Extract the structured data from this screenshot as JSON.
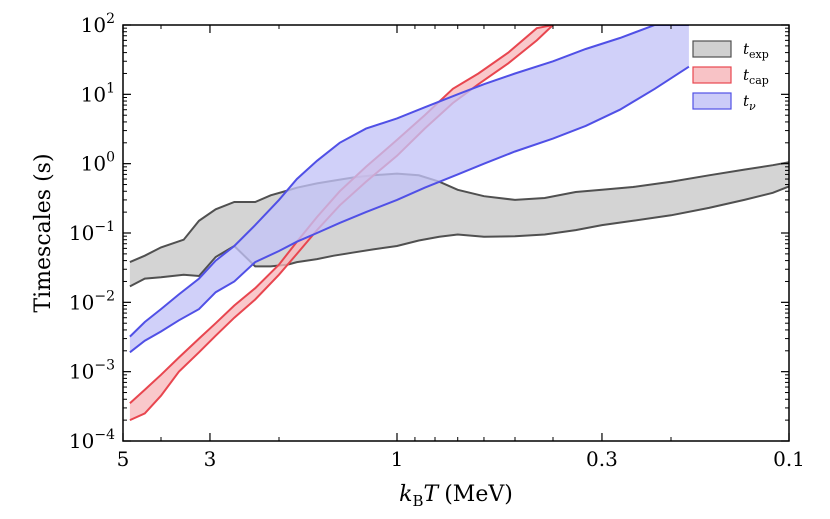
{
  "chart_data": {
    "type": "area",
    "title": "",
    "xlabel": "k_B T (MeV)",
    "xlabel_parts": {
      "k": "k",
      "sub": "B",
      "T": "T",
      "unit": "(MeV)"
    },
    "ylabel": "Timescales (s)",
    "xscale": "log",
    "yscale": "log",
    "xlim": [
      5,
      0.1
    ],
    "ylim": [
      0.0001,
      100
    ],
    "xticks": [
      {
        "value": 5,
        "label": "5"
      },
      {
        "value": 3,
        "label": "3"
      },
      {
        "value": 1,
        "label": "1"
      },
      {
        "value": 0.3,
        "label": "0.3"
      },
      {
        "value": 0.1,
        "label": "0.1"
      }
    ],
    "yticks": [
      {
        "exp": -4,
        "base": "10",
        "sup": "−4"
      },
      {
        "exp": -3,
        "base": "10",
        "sup": "−3"
      },
      {
        "exp": -2,
        "base": "10",
        "sup": "−2"
      },
      {
        "exp": -1,
        "base": "10",
        "sup": "−1"
      },
      {
        "exp": 0,
        "base": "10",
        "sup": "0"
      },
      {
        "exp": 1,
        "base": "10",
        "sup": "1"
      },
      {
        "exp": 2,
        "base": "10",
        "sup": "2"
      }
    ],
    "legend_position": "top-right",
    "series": [
      {
        "name": "t_exp",
        "legend": {
          "main": "t",
          "sub": "exp"
        },
        "fill": "#c8c8c8",
        "stroke": "#505050",
        "x": [
          4.8,
          4.4,
          4.0,
          3.5,
          3.2,
          2.9,
          2.6,
          2.3,
          2.1,
          1.9,
          1.8,
          1.6,
          1.45,
          1.3,
          1.15,
          1.0,
          0.88,
          0.78,
          0.7,
          0.6,
          0.5,
          0.42,
          0.35,
          0.3,
          0.25,
          0.2,
          0.16,
          0.13,
          0.11,
          0.1
        ],
        "upper": [
          0.038,
          0.047,
          0.062,
          0.08,
          0.15,
          0.22,
          0.28,
          0.28,
          0.35,
          0.41,
          0.45,
          0.52,
          0.57,
          0.63,
          0.68,
          0.72,
          0.68,
          0.55,
          0.42,
          0.34,
          0.3,
          0.32,
          0.39,
          0.42,
          0.46,
          0.55,
          0.68,
          0.82,
          0.95,
          1.05
        ],
        "lower": [
          0.017,
          0.022,
          0.023,
          0.025,
          0.024,
          0.045,
          0.065,
          0.033,
          0.033,
          0.035,
          0.038,
          0.042,
          0.047,
          0.052,
          0.058,
          0.065,
          0.078,
          0.088,
          0.095,
          0.088,
          0.09,
          0.095,
          0.11,
          0.13,
          0.15,
          0.18,
          0.23,
          0.3,
          0.38,
          0.47
        ]
      },
      {
        "name": "t_cap",
        "legend": {
          "main": "t",
          "sub": "cap"
        },
        "fill": "#f7b8bc",
        "stroke": "#e8464f",
        "x": [
          4.8,
          4.4,
          4.0,
          3.6,
          3.2,
          2.9,
          2.6,
          2.3,
          2.0,
          1.8,
          1.6,
          1.4,
          1.2,
          1.0,
          0.85,
          0.72,
          0.62,
          0.52,
          0.44,
          0.4
        ],
        "upper": [
          0.00035,
          0.00055,
          0.0009,
          0.0016,
          0.003,
          0.005,
          0.009,
          0.016,
          0.035,
          0.075,
          0.17,
          0.4,
          0.9,
          2.2,
          5.0,
          12,
          20,
          40,
          90,
          100
        ],
        "lower": [
          0.0002,
          0.00025,
          0.00045,
          0.001,
          0.0019,
          0.0033,
          0.006,
          0.011,
          0.025,
          0.05,
          0.11,
          0.25,
          0.55,
          1.3,
          3.2,
          7.5,
          14,
          28,
          60,
          100
        ]
      },
      {
        "name": "t_nu",
        "legend": {
          "main": "t",
          "sub": "ν"
        },
        "fill": "#c3c3f7",
        "stroke": "#5050e6",
        "x": [
          4.8,
          4.4,
          4.0,
          3.6,
          3.2,
          2.9,
          2.6,
          2.3,
          2.0,
          1.8,
          1.6,
          1.4,
          1.2,
          1.0,
          0.85,
          0.7,
          0.6,
          0.5,
          0.4,
          0.33,
          0.27,
          0.22,
          0.18
        ],
        "upper": [
          0.0032,
          0.0052,
          0.008,
          0.013,
          0.022,
          0.04,
          0.065,
          0.13,
          0.3,
          0.6,
          1.1,
          2.0,
          3.2,
          4.5,
          6.5,
          10,
          14,
          20,
          30,
          45,
          65,
          100,
          100
        ],
        "lower": [
          0.0019,
          0.0028,
          0.0038,
          0.0055,
          0.008,
          0.014,
          0.02,
          0.038,
          0.055,
          0.075,
          0.1,
          0.14,
          0.2,
          0.3,
          0.45,
          0.7,
          1.0,
          1.5,
          2.3,
          3.5,
          6.0,
          12,
          25
        ]
      }
    ]
  }
}
